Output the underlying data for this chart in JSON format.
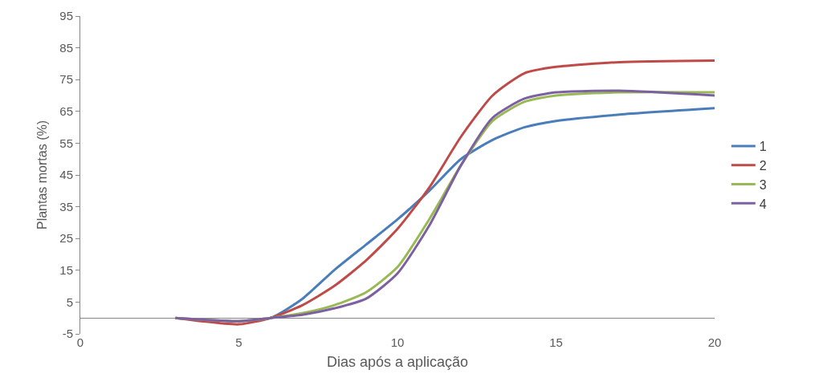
{
  "chart_data": {
    "type": "line",
    "xlabel": "Dias após a aplicação",
    "ylabel": "Plantas mortas (%)",
    "x": [
      3,
      5,
      6,
      7,
      8,
      9,
      10,
      11,
      12,
      13,
      14,
      15,
      17,
      20
    ],
    "series": [
      {
        "name": "1",
        "color": "#4a7ebb",
        "values": [
          0,
          -1,
          0,
          6,
          15,
          23,
          31,
          40,
          50,
          56,
          60,
          62,
          64,
          66
        ]
      },
      {
        "name": "2",
        "color": "#be4b48",
        "values": [
          0,
          -2,
          0,
          4,
          10,
          18,
          28,
          41,
          57,
          70,
          77,
          79,
          80.5,
          81
        ]
      },
      {
        "name": "3",
        "color": "#98b954",
        "values": [
          0,
          -1,
          0,
          1.5,
          4,
          8,
          16,
          31,
          48,
          62,
          68,
          70,
          71,
          71
        ]
      },
      {
        "name": "4",
        "color": "#7d60a0",
        "values": [
          0,
          -1,
          0,
          1,
          3,
          6,
          14,
          29,
          48,
          63,
          69,
          71,
          71.5,
          70
        ]
      }
    ],
    "xlim": [
      0,
      20
    ],
    "xticks": [
      0,
      5,
      10,
      15,
      20
    ],
    "ylim": [
      -5,
      95
    ],
    "yticks": [
      -5,
      5,
      15,
      25,
      35,
      45,
      55,
      65,
      75,
      85,
      95
    ],
    "grid": false,
    "legend": "right",
    "marker": "none",
    "line_style": "solid"
  }
}
